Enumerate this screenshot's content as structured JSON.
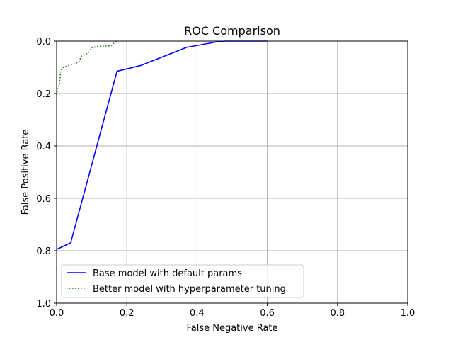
{
  "chart_data": {
    "type": "line",
    "title": "ROC Comparison",
    "xlabel": "False Negative Rate",
    "ylabel": "False Positive Rate",
    "xlim": [
      0.0,
      1.0
    ],
    "ylim": [
      1.0,
      0.0
    ],
    "y_inverted": true,
    "grid": true,
    "legend_position": "lower-left",
    "x_ticks": [
      "0.0",
      "0.2",
      "0.4",
      "0.6",
      "0.8",
      "1.0"
    ],
    "y_ticks": [
      "0.0",
      "0.2",
      "0.4",
      "0.6",
      "0.8",
      "1.0"
    ],
    "series": [
      {
        "name": "Base model with default params",
        "color": "#0000ff",
        "style": "solid",
        "x": [
          0.0,
          0.04,
          0.172,
          0.24,
          0.37,
          0.46,
          0.48,
          0.6
        ],
        "y": [
          0.795,
          0.77,
          0.115,
          0.093,
          0.024,
          0.002,
          0.0,
          0.0
        ]
      },
      {
        "name": "Better model with hyperparameter tuning",
        "color": "#008000",
        "style": "dotted",
        "x": [
          0.0,
          0.002,
          0.005,
          0.008,
          0.01,
          0.012,
          0.02,
          0.03,
          0.045,
          0.055,
          0.065,
          0.07,
          0.075,
          0.09,
          0.1,
          0.12,
          0.155,
          0.165,
          0.175
        ],
        "y": [
          0.205,
          0.19,
          0.175,
          0.16,
          0.14,
          0.11,
          0.1,
          0.095,
          0.088,
          0.085,
          0.075,
          0.058,
          0.055,
          0.045,
          0.025,
          0.02,
          0.018,
          0.005,
          0.0
        ]
      }
    ]
  }
}
